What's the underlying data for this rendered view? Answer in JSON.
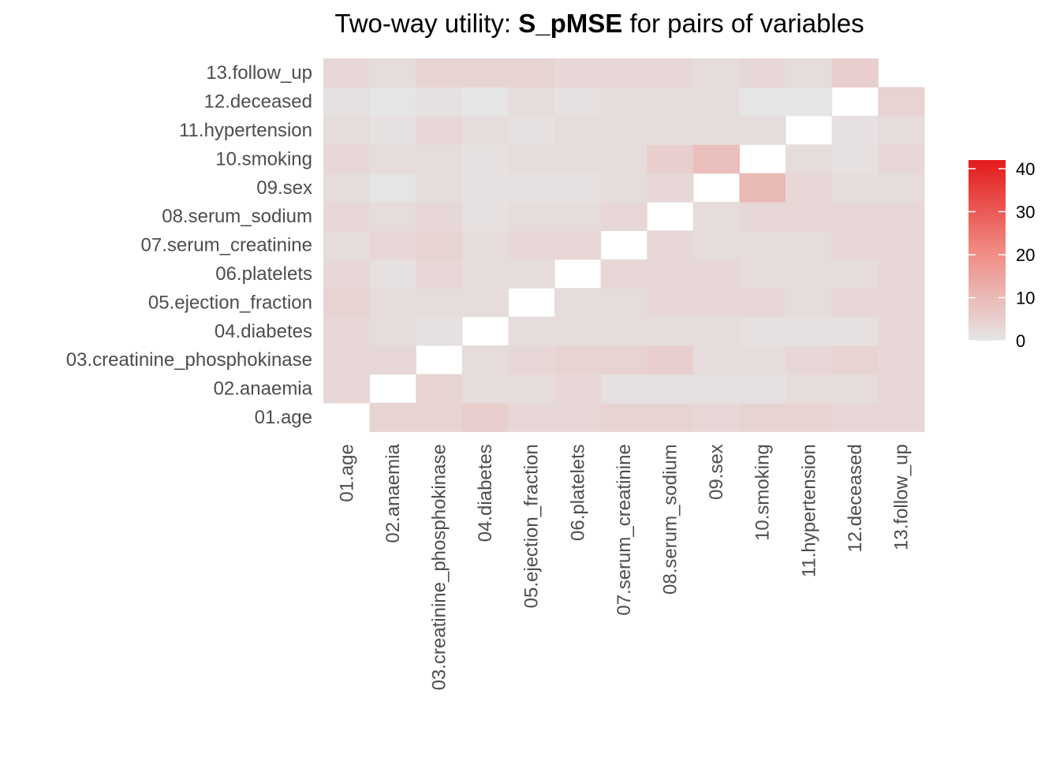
{
  "chart_data": {
    "type": "heatmap",
    "title_prefix": "Two-way utility: ",
    "title_bold": "S_pMSE",
    "title_suffix": " for pairs of variables",
    "variables": [
      "01.age",
      "02.anaemia",
      "03.creatinine_phosphokinase",
      "04.diabetes",
      "05.ejection_fraction",
      "06.platelets",
      "07.serum_creatinine",
      "08.serum_sodium",
      "09.sex",
      "10.smoking",
      "11.hypertension",
      "12.deceased",
      "13.follow_up"
    ],
    "upper_values": [
      [
        null,
        3,
        3,
        3,
        4,
        3,
        2,
        3,
        2,
        3,
        2,
        1,
        3
      ],
      [
        null,
        null,
        3,
        2,
        2,
        1,
        3,
        2,
        0,
        2,
        1,
        0,
        2
      ],
      [
        null,
        null,
        null,
        1,
        2,
        3,
        4,
        3,
        2,
        2,
        3,
        1,
        4
      ],
      [
        null,
        null,
        null,
        null,
        2,
        2,
        2,
        1,
        1,
        1,
        2,
        0,
        4
      ],
      [
        null,
        null,
        null,
        null,
        null,
        2,
        3,
        2,
        1,
        2,
        1,
        2,
        4
      ],
      [
        null,
        null,
        null,
        null,
        null,
        null,
        3,
        2,
        1,
        2,
        2,
        1,
        3
      ],
      [
        null,
        null,
        null,
        null,
        null,
        null,
        null,
        3,
        2,
        2,
        2,
        2,
        3
      ],
      [
        null,
        null,
        null,
        null,
        null,
        null,
        null,
        null,
        3,
        5,
        2,
        2,
        3
      ],
      [
        null,
        null,
        null,
        null,
        null,
        null,
        null,
        null,
        null,
        9,
        2,
        2,
        2
      ],
      [
        null,
        null,
        null,
        null,
        null,
        null,
        null,
        null,
        null,
        null,
        2,
        0,
        3
      ],
      [
        null,
        null,
        null,
        null,
        null,
        null,
        null,
        null,
        null,
        null,
        null,
        0,
        2
      ],
      [
        null,
        null,
        null,
        null,
        null,
        null,
        null,
        null,
        null,
        null,
        null,
        null,
        5
      ]
    ],
    "lower_values": [
      [
        null,
        4,
        4,
        5,
        3,
        3,
        4,
        4,
        3,
        4,
        4,
        3,
        3
      ],
      [
        null,
        null,
        4,
        2,
        2,
        3,
        1,
        1,
        1,
        1,
        2,
        2,
        3
      ],
      [
        null,
        null,
        null,
        2,
        3,
        4,
        4,
        5,
        2,
        2,
        3,
        4,
        3
      ],
      [
        null,
        null,
        null,
        null,
        2,
        2,
        2,
        2,
        2,
        1,
        1,
        1,
        3
      ],
      [
        null,
        null,
        null,
        null,
        null,
        2,
        2,
        3,
        3,
        3,
        2,
        3,
        3
      ],
      [
        null,
        null,
        null,
        null,
        null,
        null,
        3,
        3,
        3,
        2,
        2,
        2,
        3
      ],
      [
        null,
        null,
        null,
        null,
        null,
        null,
        null,
        3,
        2,
        2,
        2,
        3,
        3
      ],
      [
        null,
        null,
        null,
        null,
        null,
        null,
        null,
        null,
        2,
        3,
        3,
        3,
        3
      ],
      [
        null,
        null,
        null,
        null,
        null,
        null,
        null,
        null,
        null,
        10,
        3,
        2,
        2
      ],
      [
        null,
        null,
        null,
        null,
        null,
        null,
        null,
        null,
        null,
        null,
        2,
        1,
        3
      ],
      [
        null,
        null,
        null,
        null,
        null,
        null,
        null,
        null,
        null,
        null,
        null,
        1,
        2
      ],
      [
        null,
        null,
        null,
        null,
        null,
        null,
        null,
        null,
        null,
        null,
        null,
        null,
        4
      ]
    ],
    "color_scale": {
      "min": 0,
      "max": 42,
      "low_color": "#e5e5e5",
      "high_color": "#e31a1c"
    },
    "legend": {
      "ticks": [
        0,
        10,
        20,
        30,
        40
      ],
      "position": "right"
    },
    "grid": false
  }
}
